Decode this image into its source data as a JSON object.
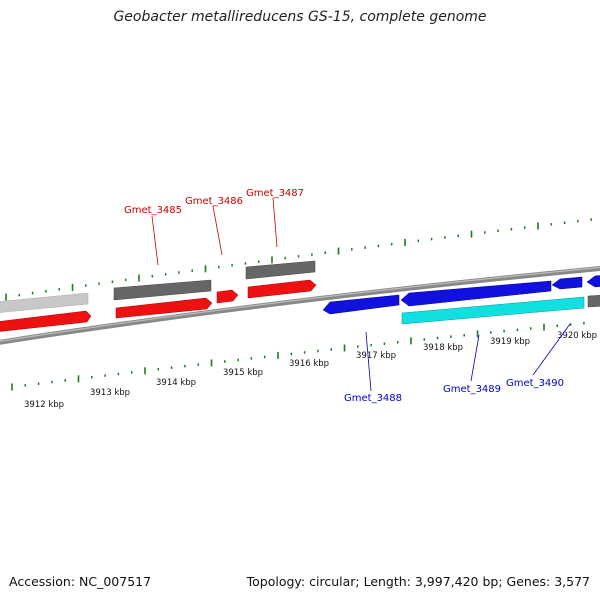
{
  "header": {
    "title": "Geobacter metallireducens GS-15, complete genome"
  },
  "footer": {
    "accession": "Accession: NC_007517",
    "stats": "Topology: circular; Length: 3,997,420 bp; Genes: 3,577"
  },
  "colors": {
    "backbone": "#888888",
    "tick": "#1f7a1f",
    "forward_cds": "#ee1111",
    "forward_gene": "#666666",
    "forward_faded": "#c8c8c8",
    "reverse_cds": "#1111dd",
    "reverse_gene": "#11e0e0",
    "forward_label": "#cc0000",
    "reverse_label": "#0000cc"
  },
  "map": {
    "kbp_labels": [
      "3912 kbp",
      "3913 kbp",
      "3914 kbp",
      "3915 kbp",
      "3916 kbp",
      "3917 kbp",
      "3918 kbp",
      "3919 kbp",
      "3920 kbp"
    ],
    "forward_genes": [
      "Gmet_3485",
      "Gmet_3486",
      "Gmet_3487"
    ],
    "reverse_genes": [
      "Gmet_3488",
      "Gmet_3489",
      "Gmet_3490"
    ]
  }
}
